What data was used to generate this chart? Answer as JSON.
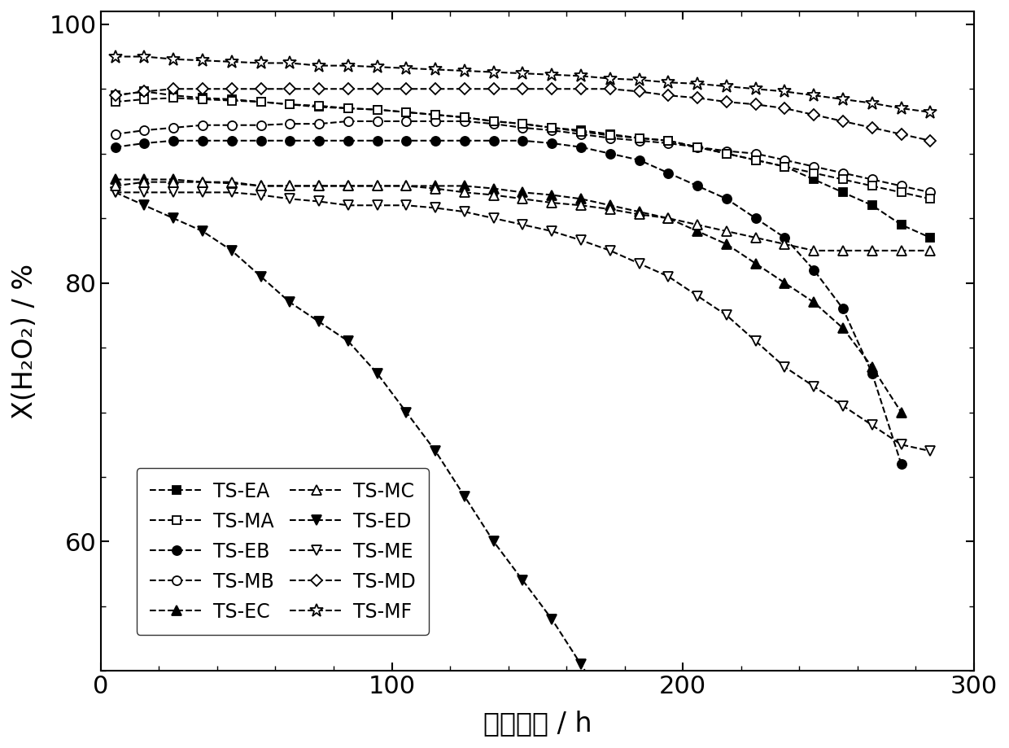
{
  "series": {
    "TS-MF": {
      "x": [
        5,
        15,
        25,
        35,
        45,
        55,
        65,
        75,
        85,
        95,
        105,
        115,
        125,
        135,
        145,
        155,
        165,
        175,
        185,
        195,
        205,
        215,
        225,
        235,
        245,
        255,
        265,
        275,
        285
      ],
      "y": [
        97.5,
        97.5,
        97.3,
        97.2,
        97.1,
        97.0,
        97.0,
        96.8,
        96.8,
        96.7,
        96.6,
        96.5,
        96.4,
        96.3,
        96.2,
        96.1,
        96.0,
        95.8,
        95.7,
        95.5,
        95.4,
        95.2,
        95.0,
        94.8,
        94.5,
        94.2,
        93.9,
        93.5,
        93.2
      ],
      "marker": "*",
      "filled": false
    },
    "TS-EA": {
      "x": [
        5,
        15,
        25,
        35,
        45,
        55,
        65,
        75,
        85,
        95,
        105,
        115,
        125,
        135,
        145,
        155,
        165,
        175,
        185,
        195,
        205,
        215,
        225,
        235,
        245,
        255,
        265,
        275,
        285
      ],
      "y": [
        94.5,
        94.8,
        94.5,
        94.3,
        94.2,
        94.0,
        93.8,
        93.6,
        93.5,
        93.4,
        93.2,
        93.0,
        92.8,
        92.5,
        92.3,
        92.0,
        91.8,
        91.5,
        91.2,
        91.0,
        90.5,
        90.0,
        89.5,
        89.0,
        88.0,
        87.0,
        86.0,
        84.5,
        83.5
      ],
      "marker": "s",
      "filled": true
    },
    "TS-MA": {
      "x": [
        5,
        15,
        25,
        35,
        45,
        55,
        65,
        75,
        85,
        95,
        105,
        115,
        125,
        135,
        145,
        155,
        165,
        175,
        185,
        195,
        205,
        215,
        225,
        235,
        245,
        255,
        265,
        275,
        285
      ],
      "y": [
        94.0,
        94.2,
        94.3,
        94.2,
        94.1,
        94.0,
        93.8,
        93.7,
        93.5,
        93.4,
        93.2,
        93.0,
        92.8,
        92.5,
        92.3,
        92.0,
        91.7,
        91.4,
        91.2,
        91.0,
        90.5,
        90.0,
        89.5,
        89.0,
        88.5,
        88.0,
        87.5,
        87.0,
        86.5
      ],
      "marker": "s",
      "filled": false
    },
    "TS-MB": {
      "x": [
        5,
        15,
        25,
        35,
        45,
        55,
        65,
        75,
        85,
        95,
        105,
        115,
        125,
        135,
        145,
        155,
        165,
        175,
        185,
        195,
        205,
        215,
        225,
        235,
        245,
        255,
        265,
        275,
        285
      ],
      "y": [
        91.5,
        91.8,
        92.0,
        92.2,
        92.2,
        92.2,
        92.3,
        92.3,
        92.5,
        92.5,
        92.5,
        92.5,
        92.5,
        92.3,
        92.0,
        91.8,
        91.5,
        91.2,
        91.0,
        90.8,
        90.5,
        90.2,
        90.0,
        89.5,
        89.0,
        88.5,
        88.0,
        87.5,
        87.0
      ],
      "marker": "o",
      "filled": false
    },
    "TS-EB": {
      "x": [
        5,
        15,
        25,
        35,
        45,
        55,
        65,
        75,
        85,
        95,
        105,
        115,
        125,
        135,
        145,
        155,
        165,
        175,
        185,
        195,
        205,
        215,
        225,
        235,
        245,
        255,
        265,
        275
      ],
      "y": [
        90.5,
        90.8,
        91.0,
        91.0,
        91.0,
        91.0,
        91.0,
        91.0,
        91.0,
        91.0,
        91.0,
        91.0,
        91.0,
        91.0,
        91.0,
        90.8,
        90.5,
        90.0,
        89.5,
        88.5,
        87.5,
        86.5,
        85.0,
        83.5,
        81.0,
        78.0,
        73.0,
        66.0
      ],
      "marker": "o",
      "filled": true
    },
    "TS-MD": {
      "x": [
        5,
        15,
        25,
        35,
        45,
        55,
        65,
        75,
        85,
        95,
        105,
        115,
        125,
        135,
        145,
        155,
        165,
        175,
        185,
        195,
        205,
        215,
        225,
        235,
        245,
        255,
        265,
        275,
        285
      ],
      "y": [
        94.5,
        94.8,
        95.0,
        95.0,
        95.0,
        95.0,
        95.0,
        95.0,
        95.0,
        95.0,
        95.0,
        95.0,
        95.0,
        95.0,
        95.0,
        95.0,
        95.0,
        95.0,
        94.8,
        94.5,
        94.3,
        94.0,
        93.8,
        93.5,
        93.0,
        92.5,
        92.0,
        91.5,
        91.0
      ],
      "marker": "D",
      "filled": false
    },
    "TS-EC": {
      "x": [
        5,
        15,
        25,
        35,
        45,
        55,
        65,
        75,
        85,
        95,
        105,
        115,
        125,
        135,
        145,
        155,
        165,
        175,
        185,
        195,
        205,
        215,
        225,
        235,
        245,
        255,
        265,
        275
      ],
      "y": [
        88.0,
        88.0,
        88.0,
        87.8,
        87.7,
        87.5,
        87.5,
        87.5,
        87.5,
        87.5,
        87.5,
        87.5,
        87.5,
        87.3,
        87.0,
        86.8,
        86.5,
        86.0,
        85.5,
        85.0,
        84.0,
        83.0,
        81.5,
        80.0,
        78.5,
        76.5,
        73.5,
        70.0
      ],
      "marker": "^",
      "filled": true
    },
    "TS-MC": {
      "x": [
        5,
        15,
        25,
        35,
        45,
        55,
        65,
        75,
        85,
        95,
        105,
        115,
        125,
        135,
        145,
        155,
        165,
        175,
        185,
        195,
        205,
        215,
        225,
        235,
        245,
        255,
        265,
        275,
        285
      ],
      "y": [
        87.5,
        87.8,
        87.8,
        87.8,
        87.8,
        87.5,
        87.5,
        87.5,
        87.5,
        87.5,
        87.5,
        87.3,
        87.0,
        86.8,
        86.5,
        86.2,
        86.0,
        85.7,
        85.3,
        85.0,
        84.5,
        84.0,
        83.5,
        83.0,
        82.5,
        82.5,
        82.5,
        82.5,
        82.5
      ],
      "marker": "^",
      "filled": false
    },
    "TS-ME": {
      "x": [
        5,
        15,
        25,
        35,
        45,
        55,
        65,
        75,
        85,
        95,
        105,
        115,
        125,
        135,
        145,
        155,
        165,
        175,
        185,
        195,
        205,
        215,
        225,
        235,
        245,
        255,
        265,
        275,
        285
      ],
      "y": [
        87.0,
        87.0,
        87.0,
        87.0,
        87.0,
        86.8,
        86.5,
        86.3,
        86.0,
        86.0,
        86.0,
        85.8,
        85.5,
        85.0,
        84.5,
        84.0,
        83.3,
        82.5,
        81.5,
        80.5,
        79.0,
        77.5,
        75.5,
        73.5,
        72.0,
        70.5,
        69.0,
        67.5,
        67.0
      ],
      "marker": "v",
      "filled": false
    },
    "TS-ED": {
      "x": [
        5,
        15,
        25,
        35,
        45,
        55,
        65,
        75,
        85,
        95,
        105,
        115,
        125,
        135,
        145,
        155,
        165,
        175,
        185,
        195,
        205,
        215,
        225
      ],
      "y": [
        87.0,
        86.0,
        85.0,
        84.0,
        82.5,
        80.5,
        78.5,
        77.0,
        75.5,
        73.0,
        70.0,
        67.0,
        63.5,
        60.0,
        57.0,
        54.0,
        50.5,
        47.0,
        43.5,
        39.5,
        35.0,
        30.0,
        25.5
      ],
      "marker": "v",
      "filled": true
    }
  },
  "xlabel": "反应时间 / h",
  "ylabel": "X(H₂O₂) / %",
  "xlim": [
    0,
    300
  ],
  "ylim": [
    50,
    101
  ],
  "xticks": [
    0,
    100,
    200,
    300
  ],
  "yticks": [
    60,
    80,
    100
  ],
  "background_color": "#ffffff"
}
